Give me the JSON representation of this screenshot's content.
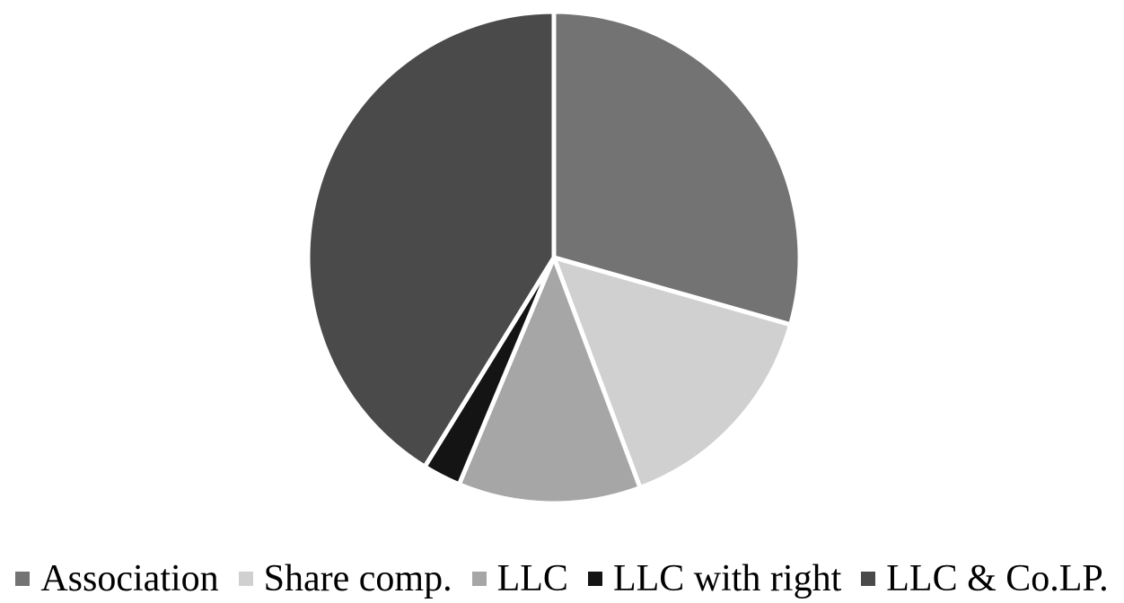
{
  "chart_data": {
    "type": "pie",
    "categories": [
      "Association",
      "Share comp.",
      "LLC",
      "LLC with right",
      "LLC & Co.LP."
    ],
    "values": [
      29.4,
      14.9,
      12.0,
      2.5,
      41.2
    ],
    "colors": [
      "#737373",
      "#d0d0d0",
      "#a6a6a6",
      "#141414",
      "#4a4a4a"
    ],
    "start_angle_deg": 0,
    "direction": "clockwise",
    "legend_position": "bottom",
    "slice_separator_color": "#ffffff"
  }
}
